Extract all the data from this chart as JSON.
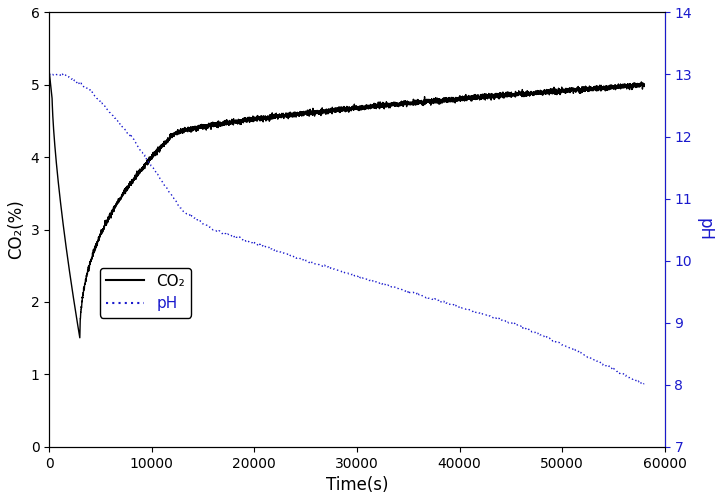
{
  "title": "",
  "xlabel": "Time(s)",
  "ylabel_left": "CO₂(%)",
  "ylabel_right": "pH",
  "xlim": [
    0,
    60000
  ],
  "ylim_left": [
    0,
    6
  ],
  "ylim_right": [
    7,
    14
  ],
  "xticks": [
    0,
    10000,
    20000,
    30000,
    40000,
    50000,
    60000
  ],
  "yticks_left": [
    0,
    1,
    2,
    3,
    4,
    5,
    6
  ],
  "yticks_right": [
    7,
    8,
    9,
    10,
    11,
    12,
    13,
    14
  ],
  "legend_co2": "CO₂",
  "legend_ph": "pH",
  "co2_color": "#000000",
  "ph_color": "#1a1acd",
  "axis_label_color_left": "#000000",
  "axis_label_color_right": "#1a1acd",
  "tick_color_right": "#1a1acd",
  "background_color": "#ffffff",
  "noise_amplitude_co2": 0.018,
  "noise_amplitude_ph": 0.008
}
